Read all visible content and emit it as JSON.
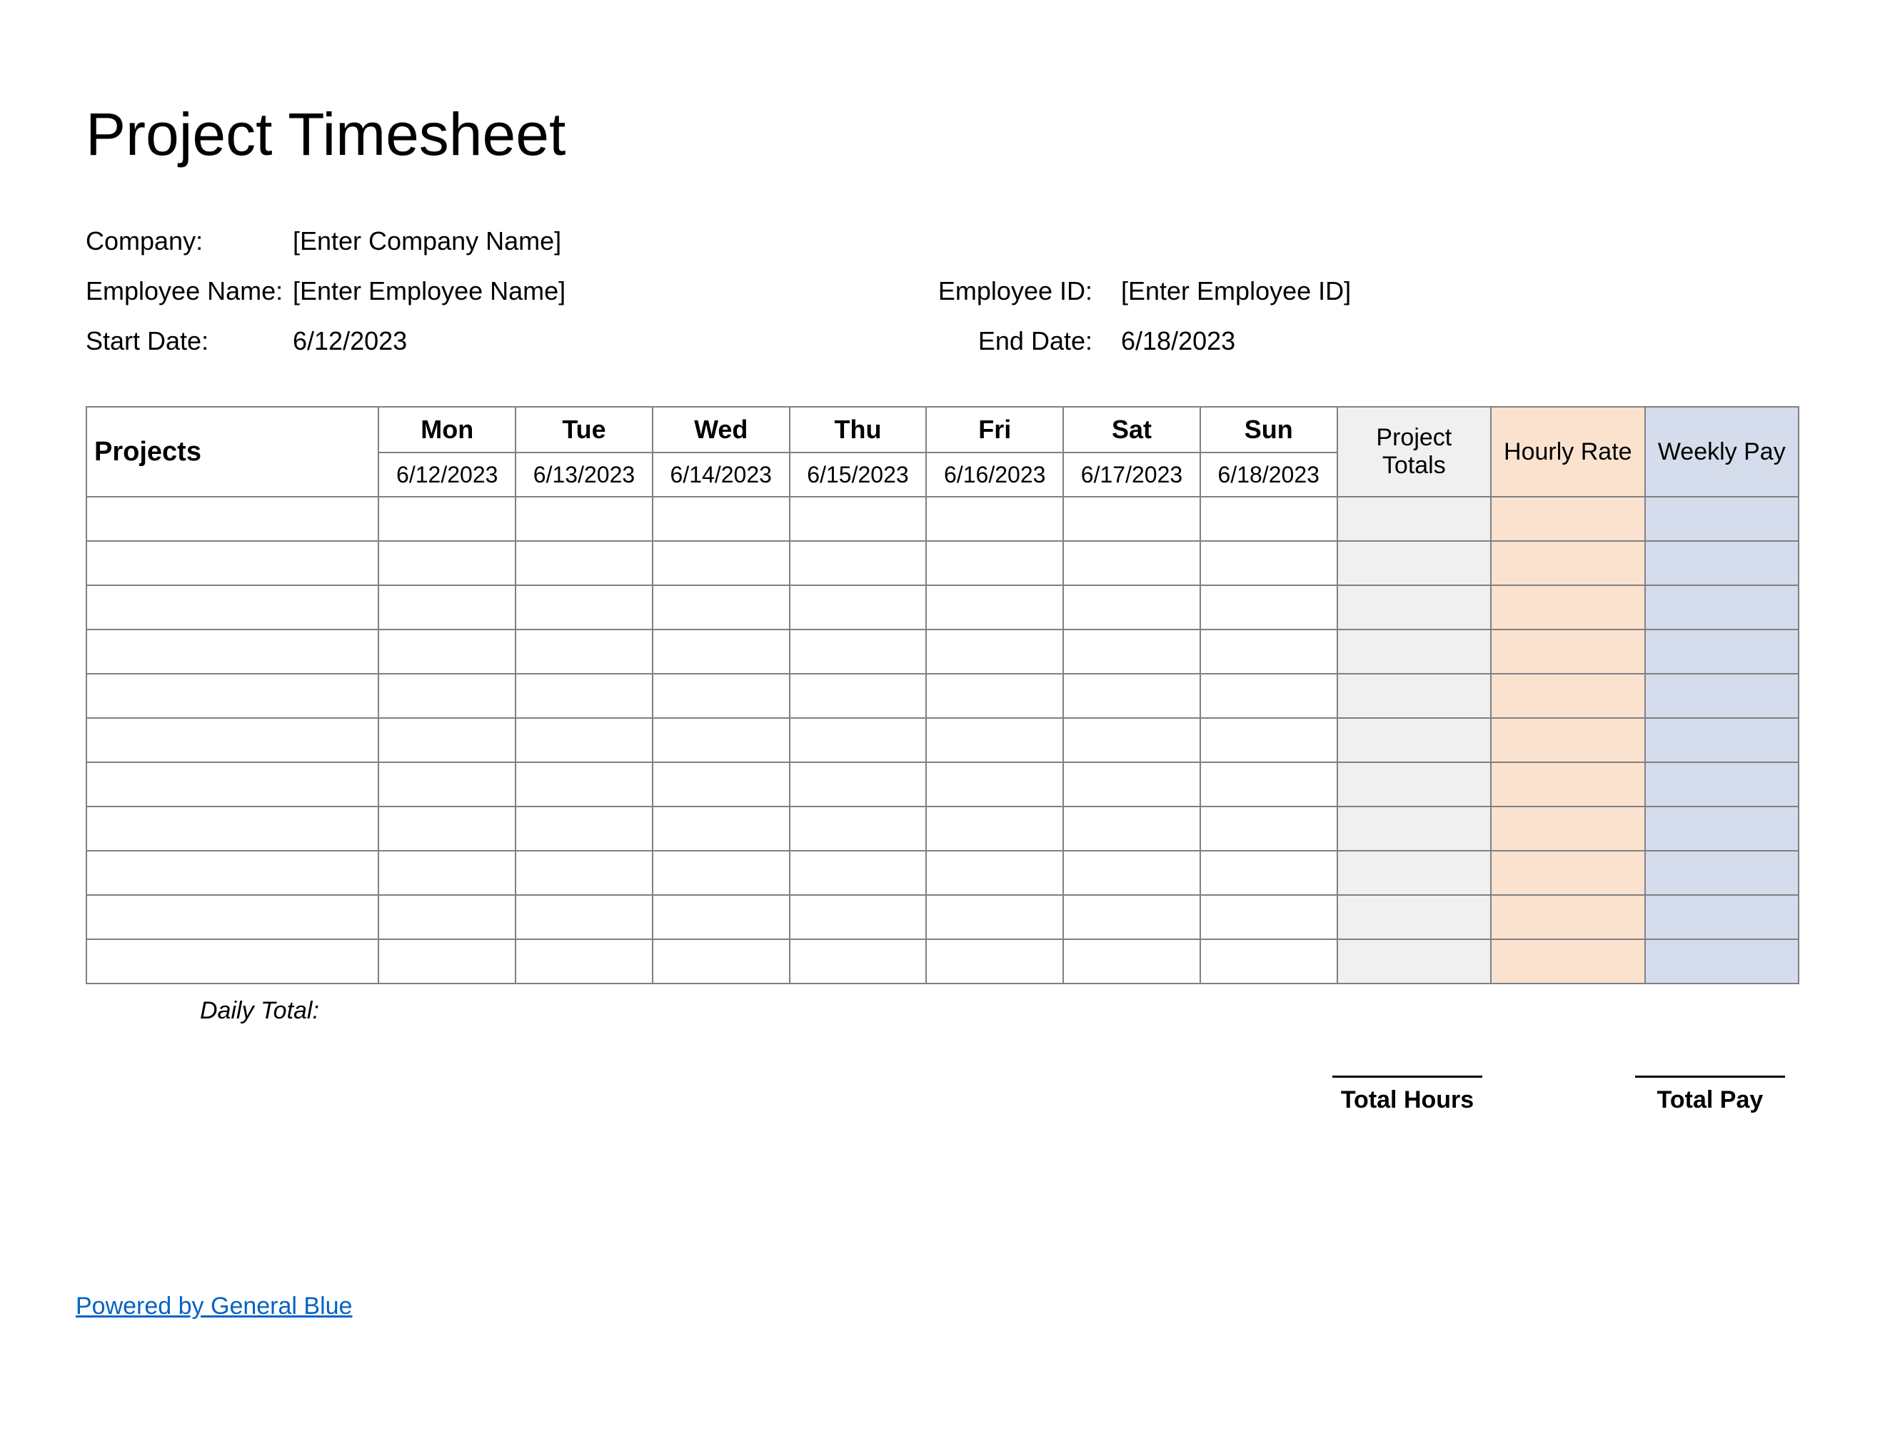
{
  "title": "Project Timesheet",
  "meta": {
    "company_label": "Company:",
    "company_value": "[Enter Company Name]",
    "employee_name_label": "Employee Name:",
    "employee_name_value": "[Enter Employee Name]",
    "employee_id_label": "Employee ID:",
    "employee_id_value": "[Enter Employee ID]",
    "start_date_label": "Start Date:",
    "start_date_value": "6/12/2023",
    "end_date_label": "End Date:",
    "end_date_value": "6/18/2023"
  },
  "table": {
    "projects_header": "Projects",
    "days": [
      {
        "name": "Mon",
        "date": "6/12/2023"
      },
      {
        "name": "Tue",
        "date": "6/13/2023"
      },
      {
        "name": "Wed",
        "date": "6/14/2023"
      },
      {
        "name": "Thu",
        "date": "6/15/2023"
      },
      {
        "name": "Fri",
        "date": "6/16/2023"
      },
      {
        "name": "Sat",
        "date": "6/17/2023"
      },
      {
        "name": "Sun",
        "date": "6/18/2023"
      }
    ],
    "summary_headers": {
      "project_totals": "Project Totals",
      "hourly_rate": "Hourly Rate",
      "weekly_pay": "Weekly Pay"
    },
    "row_count": 11,
    "colors": {
      "border": "#808080",
      "project_totals_bg": "#f0f0f0",
      "hourly_rate_bg": "#fbe2cf",
      "weekly_pay_bg": "#d5dceb",
      "background": "#ffffff",
      "text": "#000000",
      "link": "#0563c1"
    }
  },
  "below": {
    "daily_total_label": "Daily Total:",
    "total_hours_label": "Total Hours",
    "total_pay_label": "Total Pay"
  },
  "footer": {
    "link_text": "Powered by General Blue"
  }
}
